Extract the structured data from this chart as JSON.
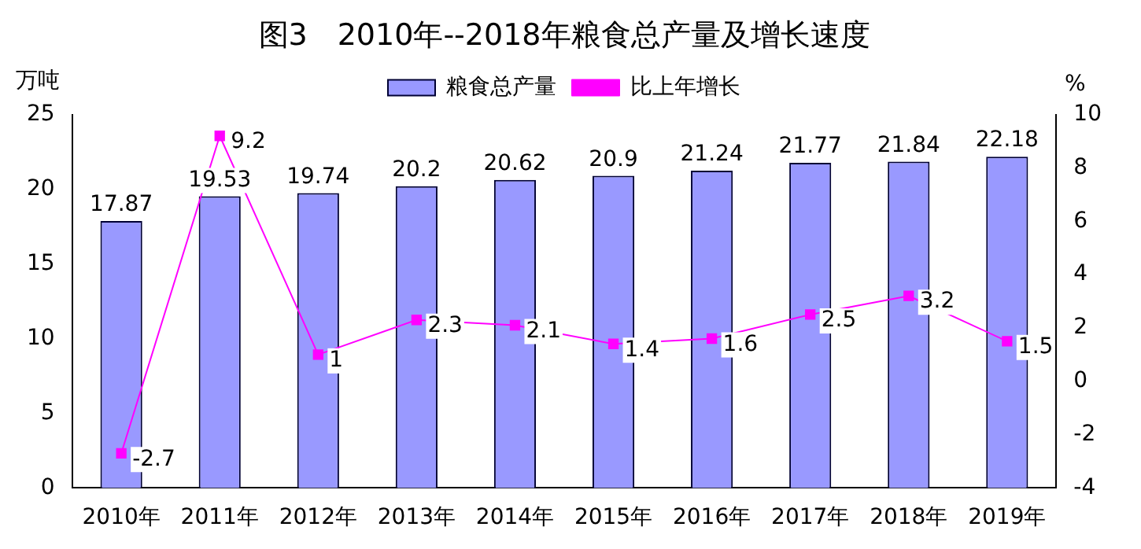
{
  "chart_data": {
    "type": "bar",
    "title": "图3　2010年--2018年粮食总产量及增长速度",
    "ylabel": "万吨",
    "y2label": "%",
    "categories": [
      "2010年",
      "2011年",
      "2012年",
      "2013年",
      "2014年",
      "2015年",
      "2016年",
      "2017年",
      "2018年",
      "2019年"
    ],
    "series": [
      {
        "name": "粮食总产量",
        "color": "#9999ff",
        "values": [
          17.87,
          19.53,
          19.74,
          20.2,
          20.62,
          20.9,
          21.24,
          21.77,
          21.84,
          22.18
        ]
      },
      {
        "name": "比上年增长",
        "type": "line",
        "axis": "y2",
        "color": "#ff00ff",
        "marker": "square",
        "values": [
          -2.7,
          9.2,
          1,
          2.3,
          2.1,
          1.4,
          1.6,
          2.5,
          3.2,
          1.5
        ]
      }
    ],
    "ylim": [
      0,
      25
    ],
    "yticks": [
      0,
      5,
      10,
      15,
      20,
      25
    ],
    "y2lim": [
      -4,
      10
    ],
    "y2ticks": [
      -4,
      -2,
      0,
      2,
      4,
      6,
      8,
      10
    ],
    "data_labels": true,
    "legend": "top",
    "grid": false
  }
}
